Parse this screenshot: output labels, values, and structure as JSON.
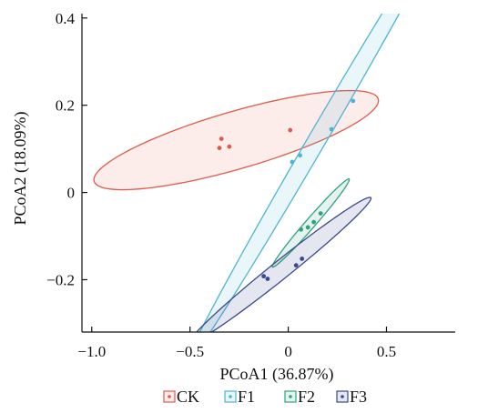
{
  "chart_data": {
    "type": "scatter",
    "xlabel": "PCoA1 (36.87%)",
    "ylabel": "PCoA2 (18.09%)",
    "xlim": [
      -1.05,
      0.85
    ],
    "ylim": [
      -0.32,
      0.41
    ],
    "xticks": [
      -1.0,
      -0.5,
      0,
      0.5
    ],
    "xtick_labels": [
      "−1.0",
      "−0.5",
      "0",
      "0.5"
    ],
    "yticks": [
      -0.2,
      0,
      0.2,
      0.4
    ],
    "ytick_labels": [
      "−0.2",
      "0",
      "0.2",
      "0.4"
    ],
    "grid": false,
    "legend_position": "bottom",
    "series": [
      {
        "name": "CK",
        "color": "#e05a4b",
        "fill": "rgba(231,108,95,0.13)",
        "points": [
          [
            -0.34,
            0.123
          ],
          [
            -0.35,
            0.102
          ],
          [
            -0.3,
            0.105
          ],
          [
            0.01,
            0.143
          ]
        ],
        "ellipse": {
          "cx": -0.265,
          "cy": 0.12,
          "rx": 0.73,
          "ry": 0.068,
          "angle_deg": 7.2
        }
      },
      {
        "name": "F1",
        "color": "#4fb4d3",
        "fill": "rgba(86,187,218,0.13)",
        "points": [
          [
            0.33,
            0.21
          ],
          [
            0.22,
            0.145
          ],
          [
            0.06,
            0.085
          ],
          [
            0.02,
            0.07
          ]
        ],
        "ellipse": {
          "cx": 0.155,
          "cy": 0.127,
          "rx": 0.85,
          "ry": 0.032,
          "angle_deg": 37.6
        }
      },
      {
        "name": "F2",
        "color": "#2fa27f",
        "fill": "rgba(46,160,126,0.13)",
        "points": [
          [
            0.165,
            -0.048
          ],
          [
            0.13,
            -0.068
          ],
          [
            0.1,
            -0.08
          ],
          [
            0.065,
            -0.085
          ]
        ],
        "ellipse": {
          "cx": 0.115,
          "cy": -0.07,
          "rx": 0.22,
          "ry": 0.015,
          "angle_deg": 27.1
        }
      },
      {
        "name": "F3",
        "color": "#3a4a8c",
        "fill": "rgba(55,70,140,0.13)",
        "points": [
          [
            -0.125,
            -0.192
          ],
          [
            -0.105,
            -0.198
          ],
          [
            0.04,
            -0.167
          ],
          [
            0.07,
            -0.152
          ]
        ],
        "ellipse": {
          "cx": -0.04,
          "cy": -0.178,
          "rx": 0.49,
          "ry": 0.025,
          "angle_deg": 19.7
        }
      }
    ]
  }
}
